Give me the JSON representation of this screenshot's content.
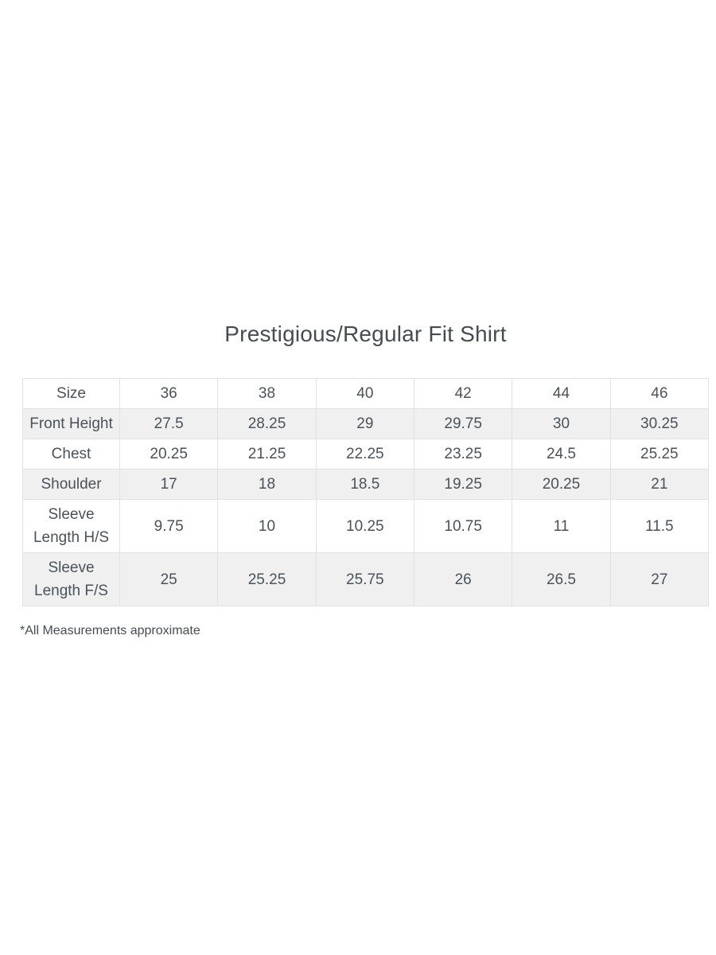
{
  "page": {
    "background": "#ffffff",
    "text_color": "#4a525a",
    "alt_row_bg": "#f0f0f1",
    "border_color": "#e1e1e1"
  },
  "chart_data": {
    "type": "table",
    "title": "Prestigious/Regular Fit Shirt",
    "columns": [
      "Size",
      "36",
      "38",
      "40",
      "42",
      "44",
      "46"
    ],
    "rows": [
      {
        "label": "Front Height",
        "values": [
          "27.5",
          "28.25",
          "29",
          "29.75",
          "30",
          "30.25"
        ]
      },
      {
        "label": "Chest",
        "values": [
          "20.25",
          "21.25",
          "22.25",
          "23.25",
          "24.5",
          "25.25"
        ]
      },
      {
        "label": "Shoulder",
        "values": [
          "17",
          "18",
          "18.5",
          "19.25",
          "20.25",
          "21"
        ]
      },
      {
        "label": "Sleeve Length H/S",
        "values": [
          "9.75",
          "10",
          "10.25",
          "10.75",
          "11",
          "11.5"
        ]
      },
      {
        "label": "Sleeve Length F/S",
        "values": [
          "25",
          "25.25",
          "25.75",
          "26",
          "26.5",
          "27"
        ]
      }
    ],
    "footnote": "*All Measurements approximate"
  }
}
